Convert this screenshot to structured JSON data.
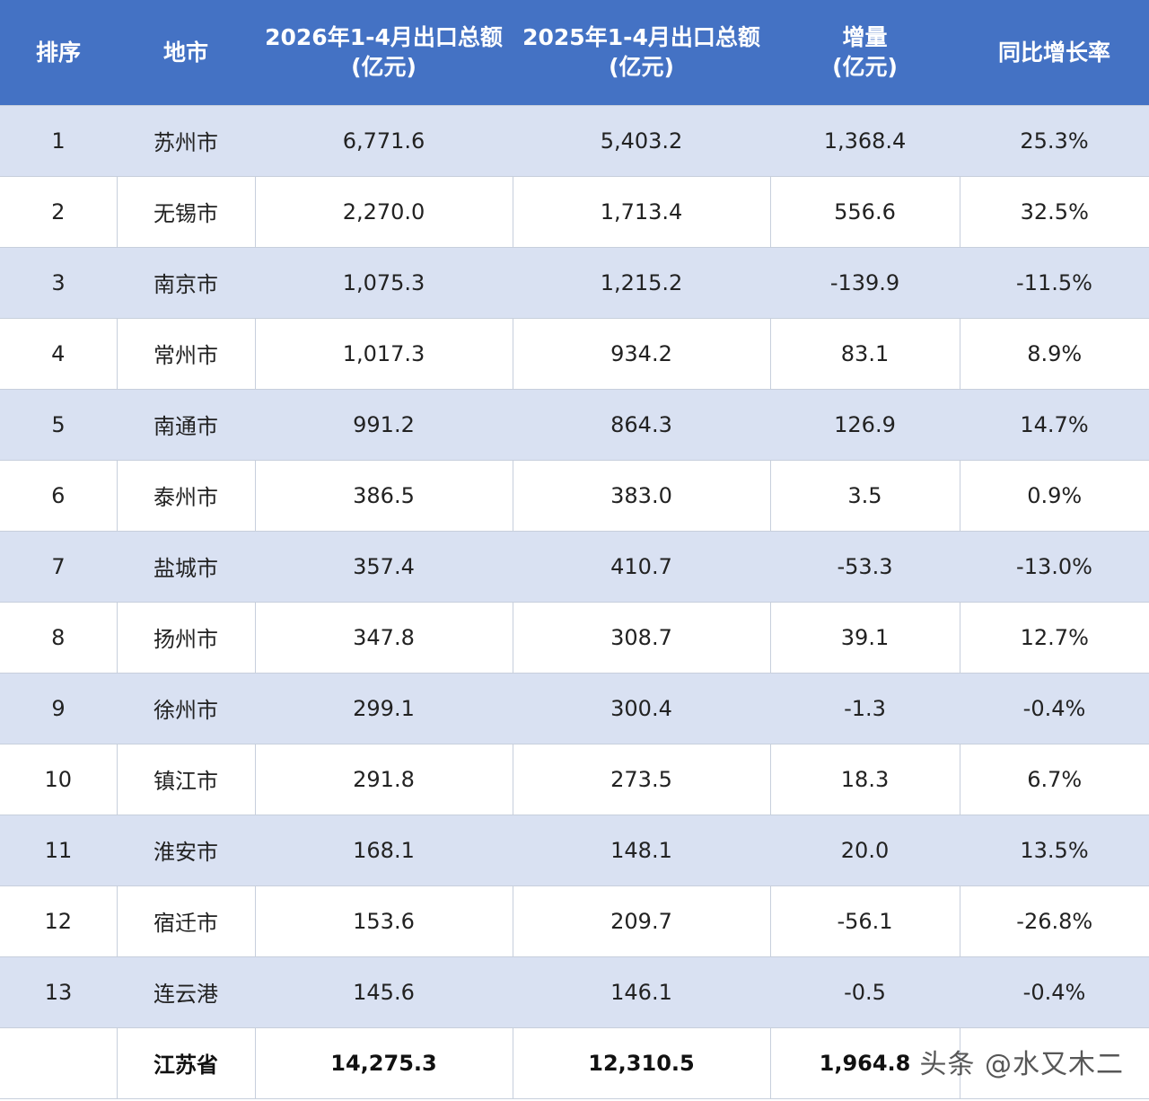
{
  "table": {
    "headers": {
      "rank": "排序",
      "city": "地市",
      "v2026_line1": "2026年1-4月出口总额",
      "v2026_line2": "(亿元)",
      "v2025_line1": "2025年1-4月出口总额",
      "v2025_line2": "(亿元)",
      "inc_line1": "增量",
      "inc_line2": "(亿元)",
      "yoy": "同比增长率"
    },
    "rows": [
      {
        "rank": "1",
        "city": "苏州市",
        "v2026": "6,771.6",
        "v2025": "5,403.2",
        "inc": "1,368.4",
        "yoy": "25.3%"
      },
      {
        "rank": "2",
        "city": "无锡市",
        "v2026": "2,270.0",
        "v2025": "1,713.4",
        "inc": "556.6",
        "yoy": "32.5%"
      },
      {
        "rank": "3",
        "city": "南京市",
        "v2026": "1,075.3",
        "v2025": "1,215.2",
        "inc": "-139.9",
        "yoy": "-11.5%"
      },
      {
        "rank": "4",
        "city": "常州市",
        "v2026": "1,017.3",
        "v2025": "934.2",
        "inc": "83.1",
        "yoy": "8.9%"
      },
      {
        "rank": "5",
        "city": "南通市",
        "v2026": "991.2",
        "v2025": "864.3",
        "inc": "126.9",
        "yoy": "14.7%"
      },
      {
        "rank": "6",
        "city": "泰州市",
        "v2026": "386.5",
        "v2025": "383.0",
        "inc": "3.5",
        "yoy": "0.9%"
      },
      {
        "rank": "7",
        "city": "盐城市",
        "v2026": "357.4",
        "v2025": "410.7",
        "inc": "-53.3",
        "yoy": "-13.0%"
      },
      {
        "rank": "8",
        "city": "扬州市",
        "v2026": "347.8",
        "v2025": "308.7",
        "inc": "39.1",
        "yoy": "12.7%"
      },
      {
        "rank": "9",
        "city": "徐州市",
        "v2026": "299.1",
        "v2025": "300.4",
        "inc": "-1.3",
        "yoy": "-0.4%"
      },
      {
        "rank": "10",
        "city": "镇江市",
        "v2026": "291.8",
        "v2025": "273.5",
        "inc": "18.3",
        "yoy": "6.7%"
      },
      {
        "rank": "11",
        "city": "淮安市",
        "v2026": "168.1",
        "v2025": "148.1",
        "inc": "20.0",
        "yoy": "13.5%"
      },
      {
        "rank": "12",
        "city": "宿迁市",
        "v2026": "153.6",
        "v2025": "209.7",
        "inc": "-56.1",
        "yoy": "-26.8%"
      },
      {
        "rank": "13",
        "city": "连云港",
        "v2026": "145.6",
        "v2025": "146.1",
        "inc": "-0.5",
        "yoy": "-0.4%"
      }
    ],
    "total": {
      "rank": "",
      "city": "江苏省",
      "v2026": "14,275.3",
      "v2025": "12,310.5",
      "inc": "1,964.8",
      "yoy": ""
    }
  },
  "watermark": "头条 @水又木二",
  "colors": {
    "header_bg": "#4472c4",
    "stripe_bg": "#d9e1f2",
    "plain_bg": "#ffffff"
  }
}
